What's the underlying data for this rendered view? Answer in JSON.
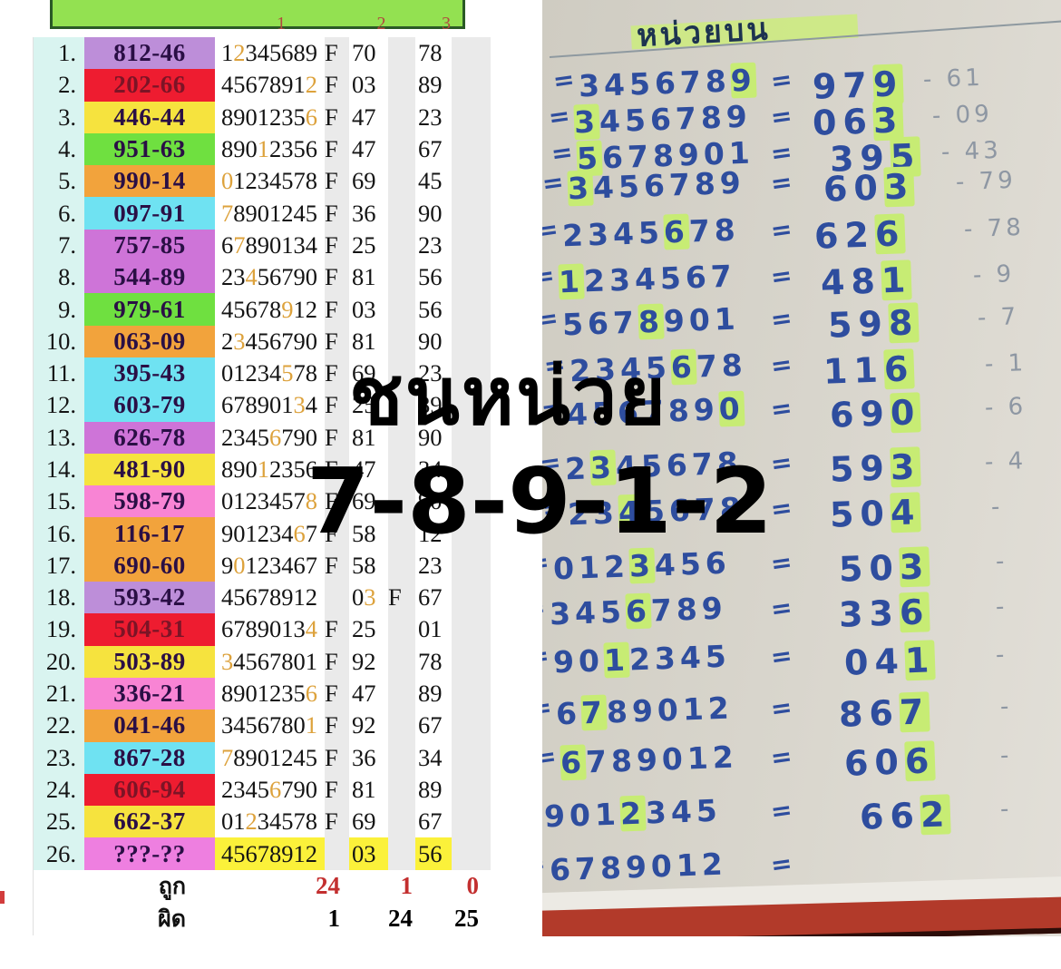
{
  "colors": {
    "cell": {
      "lilac": "#bd8ed9",
      "red": "#ee1c30",
      "yellow": "#f6e33e",
      "green": "#6fe040",
      "orange": "#f2a33c",
      "cyan": "#6fe2f2",
      "orchid": "#ce74d8",
      "pink": "#f884d4",
      "magenta": "#ee7fe0"
    },
    "cell_text_default": "#2a0f45",
    "cell_text_on_red": "#7c1426",
    "hit_digit": "#dda23c",
    "correct_value": "#c32f2f",
    "highlighter": "#c7ec74",
    "ink_blue": "#2e4d9e"
  },
  "left_table": {
    "header_cols": [
      "1",
      "2",
      "3"
    ],
    "rows": [
      {
        "n": "1.",
        "number": "812-46",
        "color": "lilac",
        "digits": "12345689",
        "hit": "2",
        "f": "col1",
        "col2": "70",
        "col3": "78"
      },
      {
        "n": "2.",
        "number": "202-66",
        "color": "red",
        "digits": "45678912",
        "hit": "2",
        "f": "col1",
        "col2": "03",
        "col3": "89"
      },
      {
        "n": "3.",
        "number": "446-44",
        "color": "yellow",
        "digits": "89012356",
        "hit": "6",
        "f": "col1",
        "col2": "47",
        "col3": "23"
      },
      {
        "n": "4.",
        "number": "951-63",
        "color": "green",
        "digits": "89012356",
        "hit": "1",
        "f": "col1",
        "col2": "47",
        "col3": "67"
      },
      {
        "n": "5.",
        "number": "990-14",
        "color": "orange",
        "digits": "01234578",
        "hit": "0",
        "f": "col1",
        "col2": "69",
        "col3": "45"
      },
      {
        "n": "6.",
        "number": "097-91",
        "color": "cyan",
        "digits": "78901245",
        "hit": "7",
        "f": "col1",
        "col2": "36",
        "col3": "90"
      },
      {
        "n": "7.",
        "number": "757-85",
        "color": "orchid",
        "digits": "67890134",
        "hit": "7",
        "f": "col1",
        "col2": "25",
        "col3": "23"
      },
      {
        "n": "8.",
        "number": "544-89",
        "color": "orchid",
        "digits": "23456790",
        "hit": "4",
        "f": "col1",
        "col2": "81",
        "col3": "56"
      },
      {
        "n": "9.",
        "number": "979-61",
        "color": "green",
        "digits": "45678912",
        "hit": "9",
        "f": "col1",
        "col2": "03",
        "col3": "56"
      },
      {
        "n": "10.",
        "number": "063-09",
        "color": "orange",
        "digits": "23456790",
        "hit": "3",
        "f": "col1",
        "col2": "81",
        "col3": "90"
      },
      {
        "n": "11.",
        "number": "395-43",
        "color": "cyan",
        "digits": "01234578",
        "hit": "5",
        "f": "col1",
        "col2": "69",
        "col3": "23"
      },
      {
        "n": "12.",
        "number": "603-79",
        "color": "cyan",
        "digits": "67890134",
        "hit": "3",
        "f": "col1",
        "col2": "25",
        "col3": "89"
      },
      {
        "n": "13.",
        "number": "626-78",
        "color": "orchid",
        "digits": "23456790",
        "hit": "6",
        "f": "col1",
        "col2": "81",
        "col3": "90"
      },
      {
        "n": "14.",
        "number": "481-90",
        "color": "yellow",
        "digits": "89012356",
        "hit": "1",
        "f": "col1",
        "col2": "47",
        "col3": "34"
      },
      {
        "n": "15.",
        "number": "598-79",
        "color": "pink",
        "digits": "01234578",
        "hit": "8",
        "f": "col1",
        "col2": "69",
        "col3": "90"
      },
      {
        "n": "16.",
        "number": "116-17",
        "color": "orange",
        "digits": "90123467",
        "hit": "6",
        "f": "col1",
        "col2": "58",
        "col3": "12"
      },
      {
        "n": "17.",
        "number": "690-60",
        "color": "orange",
        "digits": "90123467",
        "hit": "0",
        "f": "col1",
        "col2": "58",
        "col3": "23"
      },
      {
        "n": "18.",
        "number": "593-42",
        "color": "lilac",
        "digits": "45678912",
        "hit": "3",
        "f": "col2",
        "col2": "03",
        "col3": "67"
      },
      {
        "n": "19.",
        "number": "504-31",
        "color": "red",
        "digits": "67890134",
        "hit": "4",
        "f": "col1",
        "col2": "25",
        "col3": "01"
      },
      {
        "n": "20.",
        "number": "503-89",
        "color": "yellow",
        "digits": "34567801",
        "hit": "3",
        "f": "col1",
        "col2": "92",
        "col3": "78"
      },
      {
        "n": "21.",
        "number": "336-21",
        "color": "pink",
        "digits": "89012356",
        "hit": "6",
        "f": "col1",
        "col2": "47",
        "col3": "89"
      },
      {
        "n": "22.",
        "number": "041-46",
        "color": "orange",
        "digits": "34567801",
        "hit": "1",
        "f": "col1",
        "col2": "92",
        "col3": "67"
      },
      {
        "n": "23.",
        "number": "867-28",
        "color": "cyan",
        "digits": "78901245",
        "hit": "7",
        "f": "col1",
        "col2": "36",
        "col3": "34"
      },
      {
        "n": "24.",
        "number": "606-94",
        "color": "red",
        "digits": "23456790",
        "hit": "6",
        "f": "col1",
        "col2": "81",
        "col3": "89"
      },
      {
        "n": "25.",
        "number": "662-37",
        "color": "yellow",
        "digits": "01234578",
        "hit": "2",
        "f": "col1",
        "col2": "69",
        "col3": "67"
      },
      {
        "n": "26.",
        "number": "???-??",
        "color": "magenta",
        "digits": "45678912",
        "hit": "",
        "f": "none",
        "col2": "03",
        "col3": "56",
        "yellow_highlight": true
      }
    ],
    "footer": {
      "correct_label": "ถูก",
      "correct": [
        "24",
        "1",
        "0"
      ],
      "wrong_label": "ผิด",
      "wrong": [
        "1",
        "24",
        "25"
      ]
    }
  },
  "overlay": {
    "line1": "ชนหน่วย",
    "line2": "7-8-9-1-2"
  },
  "photo": {
    "title": "หน่วยบน",
    "equals": "=",
    "rows": [
      {
        "seq": "3456789",
        "result": "979",
        "suffix": "- 61",
        "hit": "9"
      },
      {
        "seq": "3456789",
        "result": "063",
        "suffix": "- 09",
        "hit": "3"
      },
      {
        "seq": "5678901",
        "result": "395",
        "suffix": "- 43",
        "hit": "5"
      },
      {
        "seq": "3456789",
        "result": "603",
        "suffix": "- 79",
        "hit": "3"
      },
      {
        "seq": "2345678",
        "result": "626",
        "suffix": "- 78",
        "hit": "6"
      },
      {
        "seq": "1234567",
        "result": "481",
        "suffix": "- 9",
        "hit": "1"
      },
      {
        "seq": "5678901",
        "result": "598",
        "suffix": "- 7",
        "hit": "8"
      },
      {
        "seq": "2345678",
        "result": "116",
        "suffix": "- 1",
        "hit": "6"
      },
      {
        "seq": "4567890",
        "result": "690",
        "suffix": "- 6",
        "hit": "0"
      },
      {
        "seq": "2345678",
        "result": "593",
        "suffix": "- 4",
        "hit": "3"
      },
      {
        "seq": "2345678",
        "result": "504",
        "suffix": "-",
        "hit": "4"
      },
      {
        "seq": "0123456",
        "result": "503",
        "suffix": "-",
        "hit": "3"
      },
      {
        "seq": "3456789",
        "result": "336",
        "suffix": "-",
        "hit": "6"
      },
      {
        "seq": "9012345",
        "result": "041",
        "suffix": "-",
        "hit": "1"
      },
      {
        "seq": "6789012",
        "result": "867",
        "suffix": "-",
        "hit": "7"
      },
      {
        "seq": "6789012",
        "result": "606",
        "suffix": "-",
        "hit": "6"
      },
      {
        "seq": "9012345",
        "result": "662",
        "suffix": "-",
        "hit": "2"
      },
      {
        "seq": "6789012",
        "result": "",
        "suffix": "",
        "hit": ""
      }
    ]
  }
}
